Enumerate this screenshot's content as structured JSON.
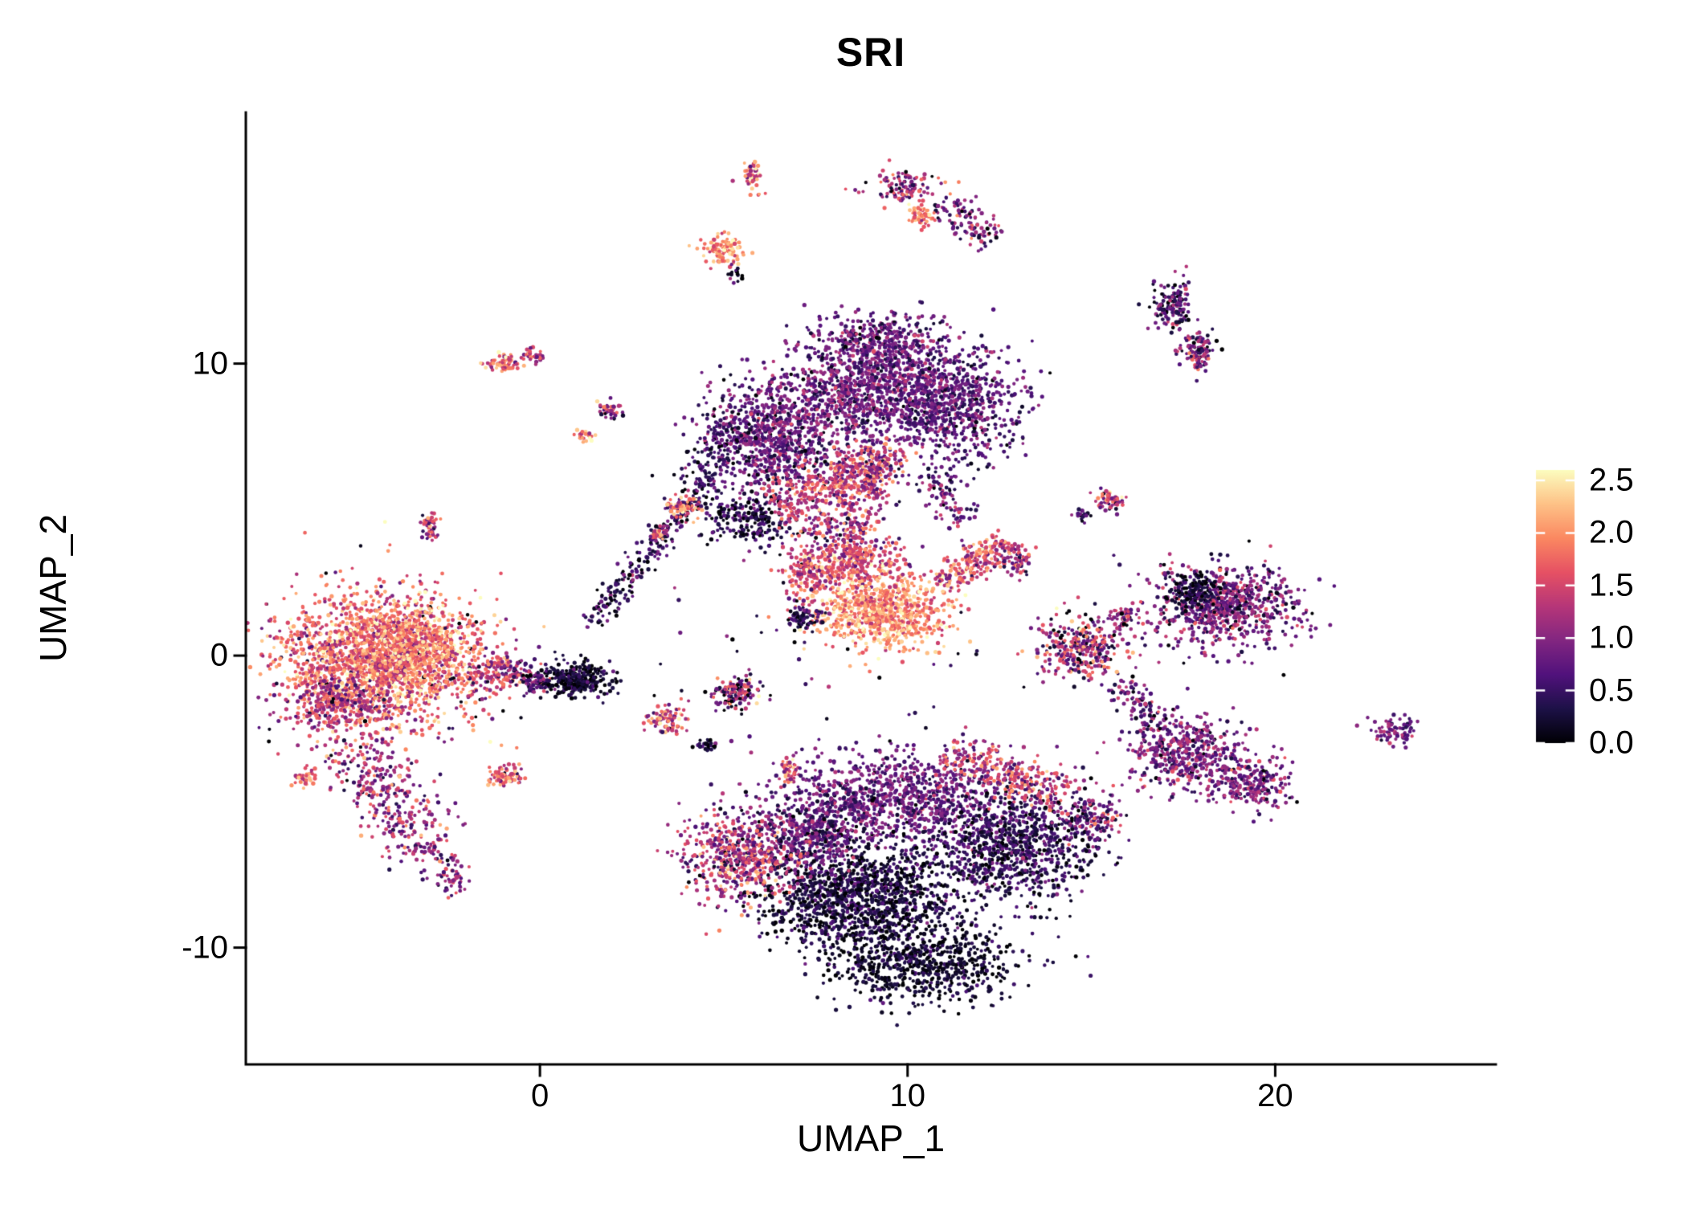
{
  "chart_data": {
    "type": "scatter",
    "title": "SRI",
    "xlabel": "UMAP_1",
    "ylabel": "UMAP_2",
    "xlim": [
      -8,
      26
    ],
    "ylim": [
      -14,
      18.6
    ],
    "grid": false,
    "xticks": {
      "values": [
        0,
        10,
        20
      ],
      "labels": [
        "0",
        "10",
        "20"
      ]
    },
    "yticks": {
      "values": [
        10,
        0,
        -10
      ],
      "labels": [
        "10",
        "0",
        "-10"
      ]
    },
    "legend": {
      "position": "right",
      "vmin": 0,
      "vmax": 2.6,
      "tick_values": [
        0,
        0.5,
        1.0,
        1.5,
        2.0,
        2.5
      ],
      "tick_labels": [
        "0.0",
        "0.5",
        "1.0",
        "1.5",
        "2.0",
        "2.5"
      ]
    },
    "colormap": {
      "name": "magma",
      "stops": [
        {
          "t": 0.0,
          "color": "#000004"
        },
        {
          "t": 0.125,
          "color": "#1d1147"
        },
        {
          "t": 0.25,
          "color": "#51127c"
        },
        {
          "t": 0.375,
          "color": "#822681"
        },
        {
          "t": 0.5,
          "color": "#b63679"
        },
        {
          "t": 0.625,
          "color": "#e65164"
        },
        {
          "t": 0.75,
          "color": "#fb8861"
        },
        {
          "t": 0.875,
          "color": "#fec287"
        },
        {
          "t": 1.0,
          "color": "#fcfdbf"
        }
      ]
    },
    "point_radius_px": [
      1.9,
      2.7
    ],
    "clusters": [
      {
        "name": "noise-left",
        "shape": "blob",
        "cx": -4,
        "cy": -0.5,
        "rx": 3.8,
        "ry": 3.2,
        "n": 70,
        "expr": 0.4,
        "sd": 0.5
      },
      {
        "name": "noise-topmid",
        "shape": "blob",
        "cx": 8,
        "cy": 8,
        "rx": 4.2,
        "ry": 3.2,
        "n": 80,
        "expr": 0.35,
        "sd": 0.4
      },
      {
        "name": "noise-bottom",
        "shape": "blob",
        "cx": 9.5,
        "cy": -7,
        "rx": 4.8,
        "ry": 3,
        "n": 80,
        "expr": 0.4,
        "sd": 0.4
      },
      {
        "name": "noise-right",
        "shape": "blob",
        "cx": 17,
        "cy": 0.5,
        "rx": 3,
        "ry": 3,
        "n": 35,
        "expr": 0.4,
        "sd": 0.4
      },
      {
        "name": "noise-mid",
        "shape": "blob",
        "cx": 7.5,
        "cy": 0.5,
        "rx": 5.5,
        "ry": 4.5,
        "n": 45,
        "expr": 0.5,
        "sd": 0.5
      },
      {
        "name": "left-main",
        "shape": "blob",
        "cx": -4.4,
        "cy": -0.2,
        "rx": 2.7,
        "ry": 2.3,
        "n": 1900,
        "expr": 1.75,
        "sd": 0.45
      },
      {
        "name": "left-main-purple-edge",
        "shape": "blob",
        "cx": -5.6,
        "cy": -1.6,
        "rx": 1.3,
        "ry": 1.1,
        "n": 250,
        "expr": 1.2,
        "sd": 0.4
      },
      {
        "name": "left-main-core",
        "shape": "blob",
        "cx": -3.4,
        "cy": 0.3,
        "rx": 1.6,
        "ry": 1.4,
        "n": 500,
        "expr": 1.95,
        "sd": 0.4
      },
      {
        "name": "left-tail",
        "shape": "streak",
        "x1": -5.2,
        "y1": -3.0,
        "x2": -3.0,
        "y2": -6.6,
        "w": 1.1,
        "n": 320,
        "expr": 1.15,
        "sd": 0.45
      },
      {
        "name": "left-tail-tip",
        "shape": "streak",
        "x1": -3.1,
        "y1": -6.4,
        "x2": -2.1,
        "y2": -8.1,
        "w": 0.5,
        "n": 80,
        "expr": 1.0,
        "sd": 0.4
      },
      {
        "name": "left-spot",
        "shape": "blob",
        "cx": -6.4,
        "cy": -4.2,
        "rx": 0.35,
        "ry": 0.3,
        "n": 35,
        "expr": 1.7,
        "sd": 0.35
      },
      {
        "name": "left-bridge",
        "shape": "blob",
        "cx": -1.1,
        "cy": -0.6,
        "rx": 0.9,
        "ry": 0.7,
        "n": 160,
        "expr": 1.3,
        "sd": 0.5
      },
      {
        "name": "dark-knot",
        "shape": "blob",
        "cx": 1.0,
        "cy": -0.8,
        "rx": 1.0,
        "ry": 0.6,
        "n": 300,
        "expr": 0.22,
        "sd": 0.22
      },
      {
        "name": "dark-knot-west",
        "shape": "blob",
        "cx": -0.1,
        "cy": -0.9,
        "rx": 0.45,
        "ry": 0.4,
        "n": 70,
        "expr": 0.6,
        "sd": 0.4
      },
      {
        "name": "small-pink-low",
        "shape": "blob",
        "cx": -0.9,
        "cy": -4.1,
        "rx": 0.5,
        "ry": 0.4,
        "n": 80,
        "expr": 1.55,
        "sd": 0.45
      },
      {
        "name": "tiny-pair-left",
        "shape": "blob",
        "cx": -3.0,
        "cy": 4.4,
        "rx": 0.28,
        "ry": 0.5,
        "n": 45,
        "expr": 1.25,
        "sd": 0.5
      },
      {
        "name": "diag-streak",
        "shape": "streak",
        "x1": 1.4,
        "y1": 1.1,
        "x2": 4.3,
        "y2": 5.6,
        "w": 0.4,
        "n": 240,
        "expr": 0.45,
        "sd": 0.35
      },
      {
        "name": "diag-orange-spot",
        "shape": "blob",
        "cx": 3.9,
        "cy": 5.1,
        "rx": 0.45,
        "ry": 0.4,
        "n": 60,
        "expr": 1.8,
        "sd": 0.4
      },
      {
        "name": "diag-orange-spot2",
        "shape": "blob",
        "cx": 3.3,
        "cy": 4.2,
        "rx": 0.3,
        "ry": 0.3,
        "n": 30,
        "expr": 1.5,
        "sd": 0.4
      },
      {
        "name": "topmid-left",
        "shape": "blob",
        "cx": 6.3,
        "cy": 7.4,
        "rx": 1.7,
        "ry": 1.9,
        "n": 750,
        "expr": 0.75,
        "sd": 0.3
      },
      {
        "name": "topmid-core",
        "shape": "blob",
        "cx": 8.8,
        "cy": 9.2,
        "rx": 2.3,
        "ry": 1.8,
        "n": 1000,
        "expr": 0.8,
        "sd": 0.3
      },
      {
        "name": "topmid-right",
        "shape": "blob",
        "cx": 11.2,
        "cy": 8.6,
        "rx": 1.8,
        "ry": 2.0,
        "n": 750,
        "expr": 0.7,
        "sd": 0.3
      },
      {
        "name": "topmid-top",
        "shape": "blob",
        "cx": 9.4,
        "cy": 10.8,
        "rx": 1.7,
        "ry": 0.9,
        "n": 300,
        "expr": 0.75,
        "sd": 0.3
      },
      {
        "name": "topmid-dark-fringe",
        "shape": "blob",
        "cx": 5.6,
        "cy": 4.6,
        "rx": 1.2,
        "ry": 0.8,
        "n": 220,
        "expr": 0.3,
        "sd": 0.3
      },
      {
        "name": "topmid-dark-left",
        "shape": "streak",
        "x1": 4.3,
        "y1": 5.8,
        "x2": 5.2,
        "y2": 8.3,
        "w": 0.7,
        "n": 150,
        "expr": 0.4,
        "sd": 0.3
      },
      {
        "name": "topmid-pink-inner",
        "shape": "blob",
        "cx": 9.0,
        "cy": 6.6,
        "rx": 1.0,
        "ry": 0.7,
        "n": 200,
        "expr": 1.3,
        "sd": 0.45
      },
      {
        "name": "topmid-pink-band",
        "shape": "streak",
        "x1": 6.3,
        "y1": 5.3,
        "x2": 9.3,
        "y2": 6.1,
        "w": 1.0,
        "n": 380,
        "expr": 1.35,
        "sd": 0.4
      },
      {
        "name": "mid-connector",
        "shape": "blob",
        "cx": 8.2,
        "cy": 4.4,
        "rx": 1.2,
        "ry": 0.8,
        "n": 150,
        "expr": 1.2,
        "sd": 0.5
      },
      {
        "name": "mid-connector2",
        "shape": "streak",
        "x1": 10.6,
        "y1": 6.3,
        "x2": 11.6,
        "y2": 4.6,
        "w": 0.5,
        "n": 90,
        "expr": 0.8,
        "sd": 0.4
      },
      {
        "name": "mid-bright-upper",
        "shape": "blob",
        "cx": 8.5,
        "cy": 3.2,
        "rx": 1.4,
        "ry": 0.9,
        "n": 380,
        "expr": 1.55,
        "sd": 0.4
      },
      {
        "name": "mid-bright-main",
        "shape": "blob",
        "cx": 9.3,
        "cy": 1.5,
        "rx": 1.8,
        "ry": 1.2,
        "n": 800,
        "expr": 2.0,
        "sd": 0.35
      },
      {
        "name": "mid-hook",
        "shape": "streak",
        "x1": 10.9,
        "y1": 2.4,
        "x2": 12.7,
        "y2": 3.9,
        "w": 0.6,
        "n": 220,
        "expr": 1.5,
        "sd": 0.45
      },
      {
        "name": "mid-hook-tip",
        "shape": "blob",
        "cx": 13.0,
        "cy": 3.3,
        "rx": 0.4,
        "ry": 0.5,
        "n": 60,
        "expr": 1.2,
        "sd": 0.5
      },
      {
        "name": "mid-left-lobe",
        "shape": "blob",
        "cx": 7.3,
        "cy": 2.7,
        "rx": 0.6,
        "ry": 0.9,
        "n": 140,
        "expr": 1.5,
        "sd": 0.45
      },
      {
        "name": "mid-dark-spot",
        "shape": "blob",
        "cx": 7.2,
        "cy": 1.3,
        "rx": 0.5,
        "ry": 0.4,
        "n": 70,
        "expr": 0.4,
        "sd": 0.3
      },
      {
        "name": "mid-small-a",
        "shape": "blob",
        "cx": 5.3,
        "cy": -1.3,
        "rx": 0.75,
        "ry": 0.6,
        "n": 140,
        "expr": 1.0,
        "sd": 0.7
      },
      {
        "name": "mid-small-b",
        "shape": "blob",
        "cx": 3.5,
        "cy": -2.2,
        "rx": 0.55,
        "ry": 0.5,
        "n": 90,
        "expr": 1.5,
        "sd": 0.55
      },
      {
        "name": "mid-small-c",
        "shape": "blob",
        "cx": 6.8,
        "cy": -3.9,
        "rx": 0.3,
        "ry": 0.5,
        "n": 45,
        "expr": 1.6,
        "sd": 0.4
      },
      {
        "name": "mid-small-dark",
        "shape": "blob",
        "cx": 4.5,
        "cy": -3.1,
        "rx": 0.3,
        "ry": 0.25,
        "n": 25,
        "expr": 0.3,
        "sd": 0.3
      },
      {
        "name": "bottom-upper-purple",
        "shape": "blob",
        "cx": 9.6,
        "cy": -4.9,
        "rx": 3.3,
        "ry": 1.6,
        "n": 1000,
        "expr": 0.75,
        "sd": 0.3
      },
      {
        "name": "bottom-core-dark",
        "shape": "blob",
        "cx": 8.8,
        "cy": -8.3,
        "rx": 2.7,
        "ry": 1.8,
        "n": 1300,
        "expr": 0.25,
        "sd": 0.25
      },
      {
        "name": "bottom-right-dark",
        "shape": "blob",
        "cx": 12.9,
        "cy": -6.5,
        "rx": 2.1,
        "ry": 1.9,
        "n": 850,
        "expr": 0.4,
        "sd": 0.3
      },
      {
        "name": "bottom-lower-dark",
        "shape": "blob",
        "cx": 10.4,
        "cy": -10.6,
        "rx": 2.4,
        "ry": 1.3,
        "n": 650,
        "expr": 0.2,
        "sd": 0.2
      },
      {
        "name": "bottom-purple-mix",
        "shape": "blob",
        "cx": 7.4,
        "cy": -6.2,
        "rx": 1.5,
        "ry": 1.2,
        "n": 400,
        "expr": 0.7,
        "sd": 0.35
      },
      {
        "name": "bottom-left-red",
        "shape": "blob",
        "cx": 5.4,
        "cy": -6.9,
        "rx": 1.6,
        "ry": 1.5,
        "n": 550,
        "expr": 1.3,
        "sd": 0.5
      },
      {
        "name": "bottom-pink-streak",
        "shape": "streak",
        "x1": 11.0,
        "y1": -3.3,
        "x2": 14.3,
        "y2": -4.7,
        "w": 0.7,
        "n": 280,
        "expr": 1.45,
        "sd": 0.45
      },
      {
        "name": "bottom-right-tip",
        "shape": "blob",
        "cx": 14.9,
        "cy": -5.6,
        "rx": 0.9,
        "ry": 0.9,
        "n": 170,
        "expr": 0.8,
        "sd": 0.5
      },
      {
        "name": "right-mid",
        "shape": "blob",
        "cx": 14.7,
        "cy": 0.3,
        "rx": 1.15,
        "ry": 1.05,
        "n": 330,
        "expr": 1.05,
        "sd": 0.6
      },
      {
        "name": "right-mid-top",
        "shape": "blob",
        "cx": 15.9,
        "cy": 1.4,
        "rx": 0.4,
        "ry": 0.35,
        "n": 50,
        "expr": 1.1,
        "sd": 0.5
      },
      {
        "name": "right-large",
        "shape": "blob",
        "cx": 18.7,
        "cy": 1.7,
        "rx": 2.0,
        "ry": 1.35,
        "n": 750,
        "expr": 0.9,
        "sd": 0.4
      },
      {
        "name": "right-large-dark",
        "shape": "blob",
        "cx": 17.8,
        "cy": 2.3,
        "rx": 0.8,
        "ry": 0.7,
        "n": 160,
        "expr": 0.25,
        "sd": 0.25
      },
      {
        "name": "right-low-a",
        "shape": "blob",
        "cx": 17.6,
        "cy": -3.4,
        "rx": 1.55,
        "ry": 1.25,
        "n": 480,
        "expr": 0.9,
        "sd": 0.35
      },
      {
        "name": "right-low-b",
        "shape": "blob",
        "cx": 19.4,
        "cy": -4.4,
        "rx": 0.95,
        "ry": 0.85,
        "n": 220,
        "expr": 0.9,
        "sd": 0.35
      },
      {
        "name": "right-low-bridge",
        "shape": "streak",
        "x1": 15.7,
        "y1": -0.9,
        "x2": 16.9,
        "y2": -2.5,
        "w": 0.4,
        "n": 90,
        "expr": 0.8,
        "sd": 0.4
      },
      {
        "name": "far-right-small",
        "shape": "blob",
        "cx": 23.2,
        "cy": -2.6,
        "rx": 0.65,
        "ry": 0.45,
        "n": 80,
        "expr": 0.9,
        "sd": 0.35
      },
      {
        "name": "topright-pair-upper",
        "shape": "blob",
        "cx": 17.2,
        "cy": 12.0,
        "rx": 0.6,
        "ry": 0.8,
        "n": 140,
        "expr": 0.5,
        "sd": 0.45
      },
      {
        "name": "topright-pair-lower",
        "shape": "blob",
        "cx": 17.9,
        "cy": 10.4,
        "rx": 0.5,
        "ry": 0.7,
        "n": 110,
        "expr": 0.9,
        "sd": 0.5
      },
      {
        "name": "tophook-left",
        "shape": "blob",
        "cx": 9.9,
        "cy": 16.0,
        "rx": 0.9,
        "ry": 0.55,
        "n": 110,
        "expr": 1.1,
        "sd": 0.5
      },
      {
        "name": "tophook-right",
        "shape": "streak",
        "x1": 10.9,
        "y1": 15.6,
        "x2": 12.3,
        "y2": 14.2,
        "w": 0.55,
        "n": 110,
        "expr": 0.85,
        "sd": 0.45
      },
      {
        "name": "tophook-orange",
        "shape": "blob",
        "cx": 10.4,
        "cy": 15.1,
        "rx": 0.35,
        "ry": 0.45,
        "n": 55,
        "expr": 1.9,
        "sd": 0.35
      },
      {
        "name": "top-small-red",
        "shape": "blob",
        "cx": 5.8,
        "cy": 16.4,
        "rx": 0.28,
        "ry": 0.55,
        "n": 50,
        "expr": 1.8,
        "sd": 0.4
      },
      {
        "name": "top-orange",
        "shape": "blob",
        "cx": 5.0,
        "cy": 13.9,
        "rx": 0.6,
        "ry": 0.5,
        "n": 110,
        "expr": 2.0,
        "sd": 0.35
      },
      {
        "name": "top-orange-specks",
        "shape": "blob",
        "cx": 5.3,
        "cy": 13.1,
        "rx": 0.25,
        "ry": 0.3,
        "n": 15,
        "expr": 0.5,
        "sd": 0.4
      },
      {
        "name": "upleft-pair-a",
        "shape": "blob",
        "cx": -1.0,
        "cy": 10.0,
        "rx": 0.45,
        "ry": 0.32,
        "n": 60,
        "expr": 1.7,
        "sd": 0.4
      },
      {
        "name": "upleft-pair-b",
        "shape": "blob",
        "cx": -0.2,
        "cy": 10.3,
        "rx": 0.3,
        "ry": 0.28,
        "n": 35,
        "expr": 1.4,
        "sd": 0.45
      },
      {
        "name": "upleft-small",
        "shape": "blob",
        "cx": 1.9,
        "cy": 8.4,
        "rx": 0.3,
        "ry": 0.3,
        "n": 40,
        "expr": 1.2,
        "sd": 0.6
      },
      {
        "name": "upleft-tiny",
        "shape": "blob",
        "cx": 1.2,
        "cy": 7.5,
        "rx": 0.25,
        "ry": 0.22,
        "n": 25,
        "expr": 1.8,
        "sd": 0.4
      },
      {
        "name": "right-small-top",
        "shape": "blob",
        "cx": 15.5,
        "cy": 5.3,
        "rx": 0.45,
        "ry": 0.38,
        "n": 60,
        "expr": 1.4,
        "sd": 0.55
      },
      {
        "name": "right-small-top2",
        "shape": "blob",
        "cx": 14.8,
        "cy": 4.8,
        "rx": 0.25,
        "ry": 0.22,
        "n": 20,
        "expr": 0.6,
        "sd": 0.4
      }
    ]
  }
}
